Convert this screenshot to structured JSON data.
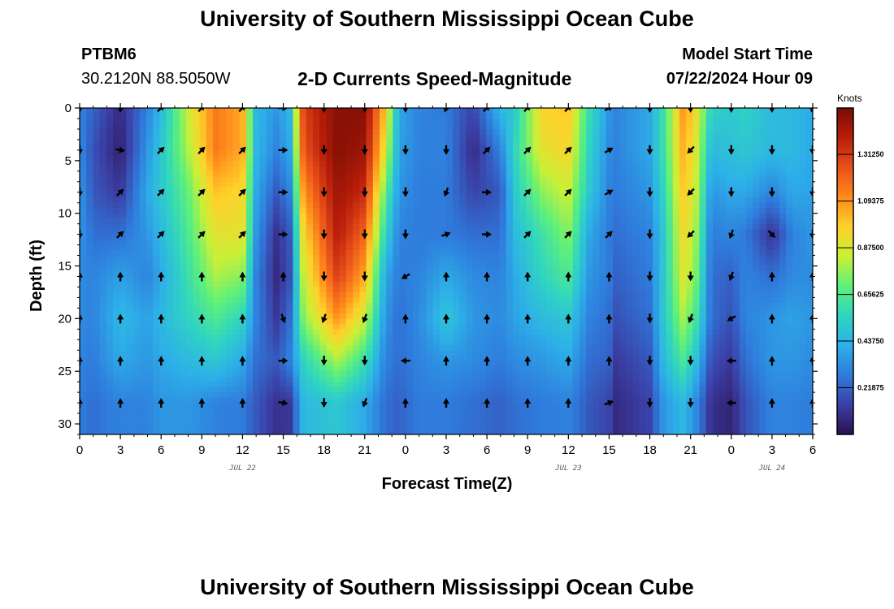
{
  "header": {
    "title": "University of Southern Mississippi Ocean Cube",
    "station": "PTBM6",
    "coords": "30.2120N  88.5050W",
    "plot_title": "2-D Currents Speed-Magnitude",
    "start_label": "Model Start Time",
    "start_value": "07/22/2024 Hour 09"
  },
  "footer": {
    "title": "University of Southern Mississippi Ocean Cube"
  },
  "chart_data": {
    "type": "heatmap",
    "title": "2-D Currents Speed-Magnitude",
    "xlabel": "Forecast Time(Z)",
    "ylabel": "Depth (ft)",
    "xlim": [
      0,
      54
    ],
    "ylim": [
      31,
      0
    ],
    "x_tick_values": [
      0,
      3,
      6,
      9,
      12,
      15,
      18,
      21,
      24,
      27,
      30,
      33,
      36,
      39,
      42,
      45,
      48,
      51,
      54
    ],
    "x_tick_labels": [
      "0",
      "3",
      "6",
      "9",
      "12",
      "15",
      "18",
      "21",
      "0",
      "3",
      "6",
      "9",
      "12",
      "15",
      "18",
      "21",
      "0",
      "3",
      "6"
    ],
    "y_ticks": [
      0,
      5,
      10,
      15,
      20,
      25,
      30
    ],
    "date_labels": [
      {
        "text": "JUL 22",
        "hour": 12
      },
      {
        "text": "JUL 23",
        "hour": 36
      },
      {
        "text": "JUL 24",
        "hour": 51
      }
    ],
    "colorbar": {
      "title": "Knots",
      "min": 0.0,
      "max": 1.53,
      "ticks": [
        0.21875,
        0.4375,
        0.65625,
        0.875,
        1.09375,
        1.3125
      ],
      "tick_labels": [
        "0.21875",
        "0.43750",
        "0.65625",
        "0.87500",
        "1.09375",
        "1.31250"
      ],
      "colors": [
        "#2b1050",
        "#3b3fa5",
        "#2f7bdc",
        "#2db0e8",
        "#30d5c0",
        "#5ef07a",
        "#c8f037",
        "#ffd12a",
        "#ff8a1c",
        "#e8501a",
        "#b81e0a",
        "#7a0c04"
      ]
    },
    "speed_profiles": [
      {
        "hour": 0,
        "speeds": [
          0.3,
          0.32,
          0.35,
          0.35,
          0.32,
          0.32,
          0.3,
          0.28
        ]
      },
      {
        "hour": 1,
        "speeds": [
          0.22,
          0.18,
          0.2,
          0.25,
          0.3,
          0.3,
          0.28,
          0.25
        ]
      },
      {
        "hour": 3,
        "speeds": [
          0.08,
          0.05,
          0.12,
          0.25,
          0.38,
          0.45,
          0.4,
          0.3
        ]
      },
      {
        "hour": 5,
        "speeds": [
          0.3,
          0.35,
          0.4,
          0.35,
          0.3,
          0.38,
          0.35,
          0.3
        ]
      },
      {
        "hour": 6,
        "speeds": [
          0.45,
          0.5,
          0.5,
          0.45,
          0.4,
          0.45,
          0.4,
          0.35
        ]
      },
      {
        "hour": 8,
        "speeds": [
          0.85,
          0.8,
          0.7,
          0.65,
          0.6,
          0.55,
          0.45,
          0.35
        ]
      },
      {
        "hour": 10,
        "speeds": [
          1.15,
          1.15,
          1.0,
          0.9,
          0.8,
          0.65,
          0.5,
          0.3
        ]
      },
      {
        "hour": 12,
        "speeds": [
          1.05,
          1.05,
          0.95,
          0.9,
          0.75,
          0.55,
          0.4,
          0.28
        ]
      },
      {
        "hour": 13,
        "speeds": [
          0.45,
          0.45,
          0.4,
          0.35,
          0.3,
          0.3,
          0.25,
          0.2
        ]
      },
      {
        "hour": 14.5,
        "speeds": [
          0.35,
          0.3,
          0.2,
          0.1,
          0.08,
          0.12,
          0.2,
          0.1
        ]
      },
      {
        "hour": 15.5,
        "speeds": [
          0.45,
          0.4,
          0.3,
          0.2,
          0.18,
          0.25,
          0.3,
          0.12
        ]
      },
      {
        "hour": 16.5,
        "speeds": [
          1.3,
          1.25,
          1.1,
          0.95,
          0.85,
          0.75,
          0.55,
          0.45
        ]
      },
      {
        "hour": 19,
        "speeds": [
          1.5,
          1.5,
          1.45,
          1.4,
          1.3,
          1.1,
          0.8,
          0.5
        ]
      },
      {
        "hour": 21,
        "speeds": [
          1.5,
          1.45,
          1.35,
          1.2,
          1.05,
          0.85,
          0.6,
          0.4
        ]
      },
      {
        "hour": 22.5,
        "speeds": [
          1.0,
          0.9,
          0.7,
          0.55,
          0.4,
          0.35,
          0.3,
          0.25
        ]
      },
      {
        "hour": 23.5,
        "speeds": [
          0.4,
          0.38,
          0.35,
          0.3,
          0.28,
          0.25,
          0.25,
          0.22
        ]
      },
      {
        "hour": 25,
        "speeds": [
          0.3,
          0.3,
          0.28,
          0.28,
          0.3,
          0.32,
          0.3,
          0.28
        ]
      },
      {
        "hour": 27,
        "speeds": [
          0.28,
          0.3,
          0.28,
          0.28,
          0.4,
          0.5,
          0.35,
          0.28
        ]
      },
      {
        "hour": 29,
        "speeds": [
          0.15,
          0.08,
          0.15,
          0.25,
          0.32,
          0.35,
          0.32,
          0.25
        ]
      },
      {
        "hour": 31,
        "speeds": [
          0.45,
          0.3,
          0.2,
          0.25,
          0.3,
          0.32,
          0.28,
          0.22
        ]
      },
      {
        "hour": 32,
        "speeds": [
          0.5,
          0.55,
          0.5,
          0.45,
          0.4,
          0.38,
          0.32,
          0.25
        ]
      },
      {
        "hour": 34,
        "speeds": [
          0.95,
          0.9,
          0.75,
          0.6,
          0.55,
          0.45,
          0.35,
          0.28
        ]
      },
      {
        "hour": 36,
        "speeds": [
          1.0,
          0.95,
          0.85,
          0.75,
          0.65,
          0.5,
          0.4,
          0.3
        ]
      },
      {
        "hour": 37.5,
        "speeds": [
          0.6,
          0.55,
          0.5,
          0.4,
          0.35,
          0.3,
          0.25,
          0.2
        ]
      },
      {
        "hour": 39,
        "speeds": [
          0.35,
          0.32,
          0.3,
          0.28,
          0.28,
          0.25,
          0.22,
          0.15
        ]
      },
      {
        "hour": 39.5,
        "speeds": [
          0.3,
          0.3,
          0.28,
          0.25,
          0.22,
          0.18,
          0.12,
          0.08
        ]
      },
      {
        "hour": 42,
        "speeds": [
          0.4,
          0.4,
          0.35,
          0.3,
          0.28,
          0.25,
          0.2,
          0.15
        ]
      },
      {
        "hour": 43,
        "speeds": [
          0.6,
          0.6,
          0.55,
          0.5,
          0.5,
          0.5,
          0.45,
          0.35
        ]
      },
      {
        "hour": 44.5,
        "speeds": [
          1.1,
          1.05,
          1.0,
          0.95,
          0.9,
          0.8,
          0.65,
          0.45
        ]
      },
      {
        "hour": 45.5,
        "speeds": [
          0.9,
          0.85,
          0.8,
          0.75,
          0.7,
          0.6,
          0.45,
          0.3
        ]
      },
      {
        "hour": 46.5,
        "speeds": [
          0.55,
          0.45,
          0.35,
          0.28,
          0.25,
          0.25,
          0.18,
          0.1
        ]
      },
      {
        "hour": 48,
        "speeds": [
          0.5,
          0.48,
          0.4,
          0.3,
          0.22,
          0.18,
          0.12,
          0.06
        ]
      },
      {
        "hour": 49,
        "speeds": [
          0.55,
          0.5,
          0.4,
          0.28,
          0.3,
          0.3,
          0.25,
          0.18
        ]
      },
      {
        "hour": 51,
        "speeds": [
          0.45,
          0.45,
          0.3,
          0.1,
          0.25,
          0.35,
          0.35,
          0.3
        ]
      },
      {
        "hour": 52.5,
        "speeds": [
          0.45,
          0.45,
          0.4,
          0.3,
          0.32,
          0.38,
          0.35,
          0.3
        ]
      },
      {
        "hour": 54,
        "speeds": [
          0.4,
          0.4,
          0.38,
          0.35,
          0.32,
          0.35,
          0.32,
          0.28
        ]
      }
    ],
    "vectors": {
      "hours": [
        0,
        3,
        6,
        9,
        12,
        15,
        18,
        21,
        24,
        27,
        30,
        33,
        36,
        39,
        42,
        45,
        48,
        51,
        54
      ],
      "depths": [
        0,
        4,
        8,
        12,
        16,
        20,
        24,
        28
      ],
      "directions_deg": [
        [
          180,
          180,
          45,
          45,
          45,
          90,
          180,
          180,
          180,
          200,
          45,
          45,
          45,
          60,
          180,
          180,
          180,
          180,
          200
        ],
        [
          180,
          100,
          45,
          45,
          45,
          90,
          180,
          180,
          180,
          180,
          45,
          45,
          45,
          60,
          180,
          225,
          180,
          180,
          180
        ],
        [
          180,
          45,
          45,
          45,
          45,
          90,
          180,
          180,
          180,
          200,
          90,
          45,
          45,
          60,
          180,
          225,
          180,
          180,
          180
        ],
        [
          180,
          45,
          45,
          45,
          45,
          90,
          180,
          180,
          180,
          70,
          90,
          45,
          45,
          45,
          180,
          225,
          200,
          135,
          180
        ],
        [
          0,
          0,
          0,
          0,
          0,
          0,
          180,
          180,
          240,
          0,
          0,
          0,
          0,
          0,
          180,
          180,
          200,
          0,
          0
        ],
        [
          0,
          0,
          0,
          0,
          0,
          160,
          200,
          200,
          0,
          0,
          0,
          0,
          0,
          0,
          180,
          200,
          240,
          0,
          0
        ],
        [
          0,
          0,
          0,
          0,
          0,
          90,
          180,
          180,
          270,
          0,
          0,
          0,
          0,
          0,
          180,
          180,
          270,
          0,
          0
        ],
        [
          0,
          0,
          0,
          0,
          0,
          100,
          180,
          200,
          0,
          0,
          0,
          0,
          0,
          70,
          180,
          180,
          270,
          0,
          0
        ]
      ]
    }
  }
}
